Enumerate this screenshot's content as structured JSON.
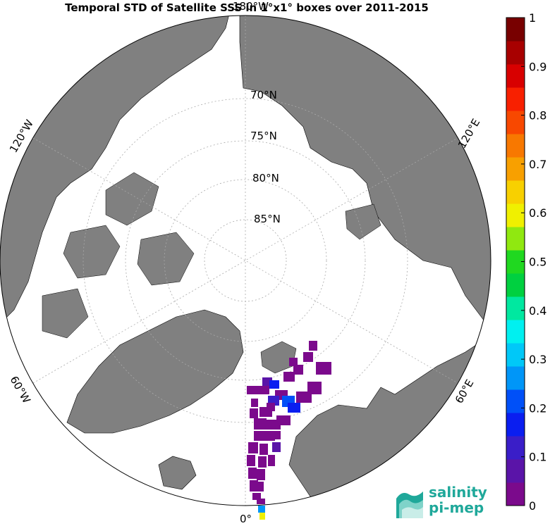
{
  "title": "Temporal STD of Satellite SSS in 1°x1° boxes over 2011-2015",
  "map": {
    "projection": "north-polar-stereographic",
    "land_color": "#808080",
    "ocean_color": "#ffffff",
    "graticule_color": "#aaaaaa",
    "lat_labels": [
      {
        "deg": "70",
        "text": "70°N"
      },
      {
        "deg": "75",
        "text": "75°N"
      },
      {
        "deg": "80",
        "text": "80°N"
      },
      {
        "deg": "85",
        "text": "85°N"
      }
    ],
    "lon_labels": [
      {
        "text": "180°W"
      },
      {
        "text": "120°W"
      },
      {
        "text": "120°E"
      },
      {
        "text": "60°W"
      },
      {
        "text": "60°E"
      },
      {
        "text": "0°"
      }
    ]
  },
  "colorbar": {
    "min": 0,
    "max": 1,
    "ticks": [
      "0",
      "0.1",
      "0.2",
      "0.3",
      "0.4",
      "0.5",
      "0.6",
      "0.7",
      "0.8",
      "0.9",
      "1"
    ],
    "colors": [
      "#7b0a8c",
      "#5a14a8",
      "#3a1ec8",
      "#0a1ef0",
      "#0050f8",
      "#0096f8",
      "#00c8f8",
      "#00f0f0",
      "#00e8a0",
      "#00d040",
      "#20d820",
      "#90e810",
      "#f0f000",
      "#f8d000",
      "#f8a000",
      "#f87800",
      "#f84800",
      "#f82000",
      "#d80000",
      "#a80000",
      "#780000"
    ]
  },
  "logo": {
    "line1": "salinity",
    "line2": "pi-mep"
  }
}
